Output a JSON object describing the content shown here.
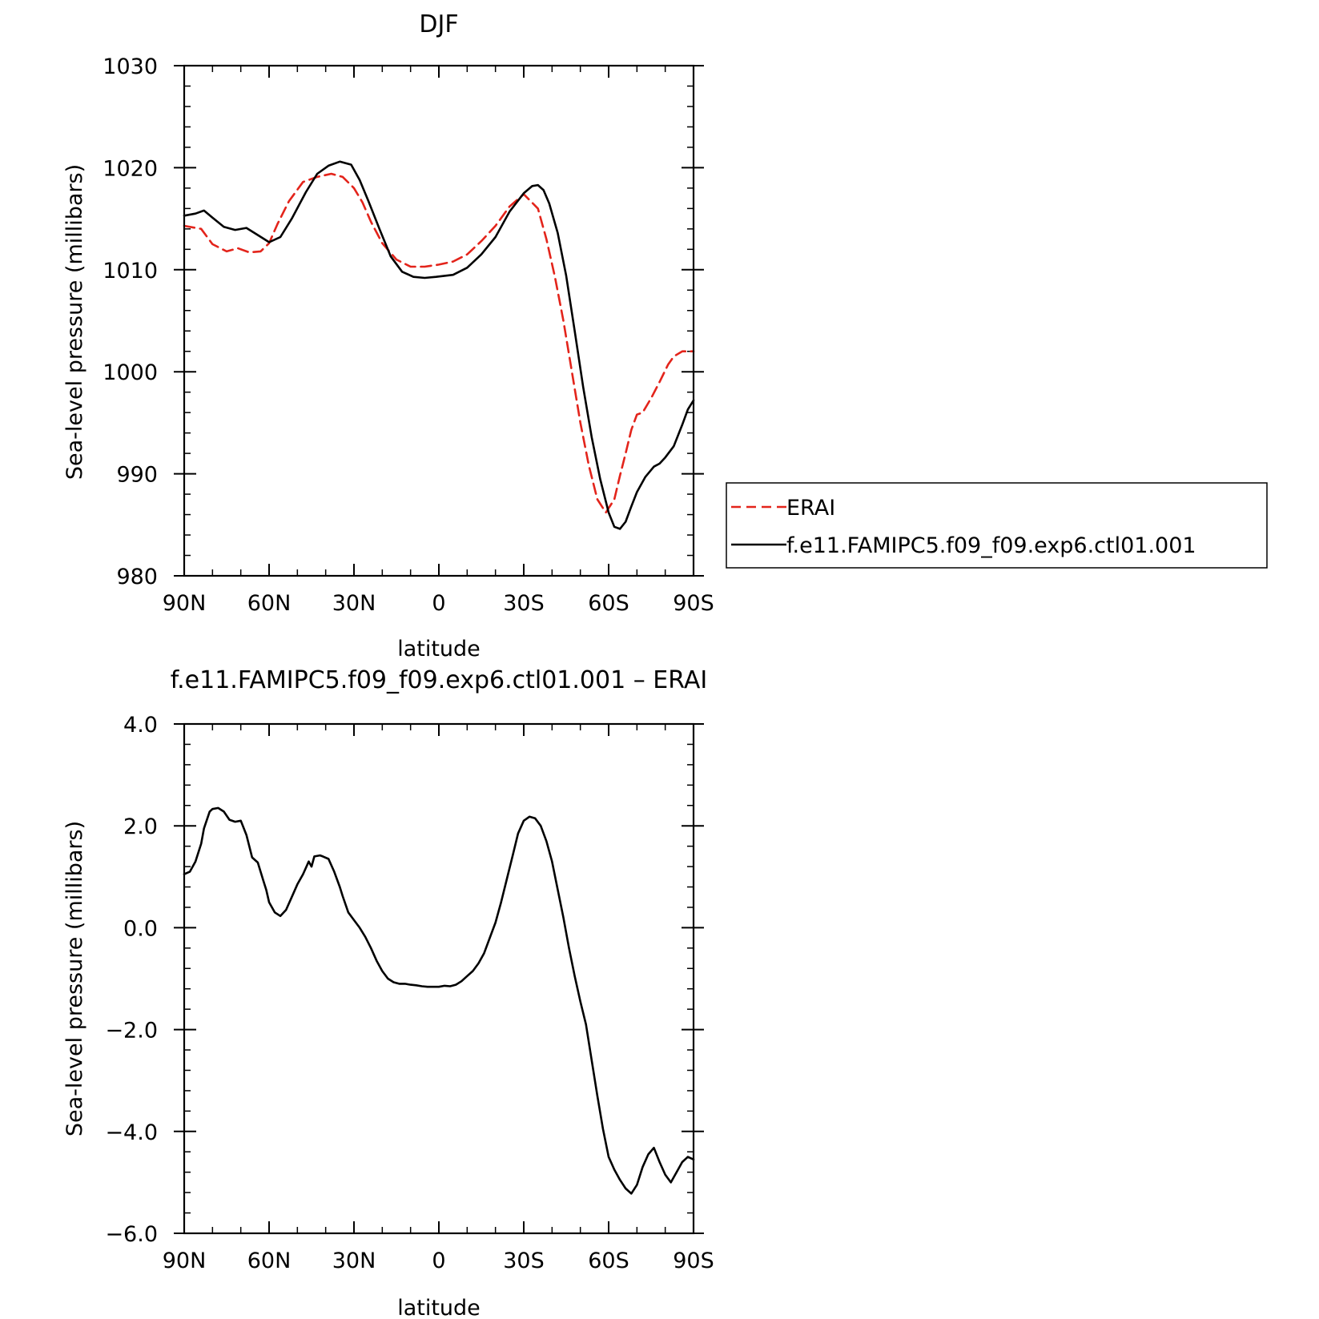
{
  "chart_data": [
    {
      "type": "line",
      "title": "DJF",
      "xlabel": "latitude",
      "ylabel": "Sea-level pressure (millibars)",
      "x_ticks": [
        "90N",
        "60N",
        "30N",
        "0",
        "30S",
        "60S",
        "90S"
      ],
      "y_ticks": [
        "980",
        "990",
        "1000",
        "1010",
        "1020",
        "1030"
      ],
      "xlim": [
        90,
        -90
      ],
      "ylim": [
        980,
        1030
      ],
      "legend_position": "right",
      "series": [
        {
          "name": "ERAI",
          "color": "#e3241b",
          "style": "dashed",
          "x": [
            90,
            84,
            80,
            75,
            71,
            67,
            63,
            60,
            57,
            53,
            48,
            43,
            38,
            34,
            30,
            27,
            24,
            20,
            15,
            10,
            5,
            0,
            -5,
            -10,
            -15,
            -20,
            -25,
            -30,
            -35,
            -38,
            -41,
            -44,
            -47,
            -50,
            -53,
            -56,
            -59,
            -62,
            -64,
            -66,
            -68,
            -70,
            -72,
            -75,
            -78,
            -81,
            -83,
            -86,
            -88,
            -90
          ],
          "y": [
            1014.3,
            1014.0,
            1012.5,
            1011.8,
            1012.1,
            1011.7,
            1011.8,
            1012.6,
            1014.5,
            1016.7,
            1018.6,
            1019.1,
            1019.4,
            1019.1,
            1018.0,
            1016.6,
            1014.7,
            1012.6,
            1011.0,
            1010.3,
            1010.3,
            1010.5,
            1010.8,
            1011.5,
            1012.8,
            1014.3,
            1016.2,
            1017.4,
            1016.0,
            1013.0,
            1009.3,
            1005.0,
            1000.0,
            995.0,
            990.8,
            987.5,
            986.2,
            987.5,
            989.8,
            992.0,
            994.3,
            995.8,
            996.0,
            997.4,
            999.0,
            1000.7,
            1001.5,
            1002.0,
            1002.0,
            1002.0
          ]
        },
        {
          "name": "f.e11.FAMIPC5.f09_f09.exp6.ctl01.001",
          "color": "#000000",
          "style": "solid",
          "x": [
            90,
            86,
            83,
            80,
            76,
            72,
            68,
            64,
            60,
            56,
            52,
            47,
            43,
            39,
            35,
            31,
            28,
            25,
            21,
            17,
            13,
            9,
            5,
            1,
            -5,
            -10,
            -15,
            -20,
            -25,
            -30,
            -33,
            -35,
            -37,
            -39,
            -42,
            -45,
            -48,
            -51,
            -54,
            -57,
            -60,
            -62,
            -64,
            -66,
            -68,
            -70,
            -73,
            -76,
            -78,
            -80,
            -83,
            -86,
            -88,
            -90
          ],
          "y": [
            1015.3,
            1015.5,
            1015.8,
            1015.1,
            1014.2,
            1013.9,
            1014.1,
            1013.4,
            1012.7,
            1013.2,
            1015.0,
            1017.6,
            1019.4,
            1020.2,
            1020.6,
            1020.3,
            1018.8,
            1016.8,
            1014.0,
            1011.3,
            1009.8,
            1009.3,
            1009.2,
            1009.3,
            1009.5,
            1010.2,
            1011.5,
            1013.2,
            1015.7,
            1017.5,
            1018.2,
            1018.3,
            1017.8,
            1016.5,
            1013.6,
            1009.4,
            1004.0,
            998.5,
            993.6,
            989.5,
            986.2,
            984.8,
            984.6,
            985.3,
            986.8,
            988.2,
            989.7,
            990.7,
            991.0,
            991.6,
            992.7,
            994.8,
            996.3,
            997.2
          ]
        }
      ]
    },
    {
      "type": "line",
      "title": "f.e11.FAMIPC5.f09_f09.exp6.ctl01.001  –  ERAI",
      "xlabel": "latitude",
      "ylabel": "Sea-level pressure (millibars)",
      "x_ticks": [
        "90N",
        "60N",
        "30N",
        "0",
        "30S",
        "60S",
        "90S"
      ],
      "y_ticks": [
        "−6.0",
        "−4.0",
        "−2.0",
        "0.0",
        "2.0",
        "4.0"
      ],
      "xlim": [
        90,
        -90
      ],
      "ylim": [
        -6,
        4
      ],
      "series": [
        {
          "color": "#000000",
          "style": "solid",
          "x": [
            90,
            88,
            86,
            84,
            83,
            81,
            80,
            78,
            76,
            74,
            72,
            70,
            68,
            66,
            64,
            62,
            61,
            60,
            58,
            56,
            54,
            52,
            50,
            48,
            46,
            45,
            44,
            42,
            41,
            39,
            37,
            35,
            34,
            32,
            30,
            28,
            26,
            24,
            22,
            20,
            18,
            16,
            14,
            12,
            10,
            8,
            6,
            4,
            2,
            0,
            -2,
            -4,
            -6,
            -8,
            -10,
            -12,
            -14,
            -16,
            -18,
            -20,
            -22,
            -24,
            -26,
            -28,
            -30,
            -32,
            -34,
            -36,
            -38,
            -40,
            -42,
            -44,
            -46,
            -48,
            -50,
            -52,
            -54,
            -56,
            -58,
            -60,
            -62,
            -64,
            -66,
            -68,
            -70,
            -72,
            -74,
            -76,
            -78,
            -80,
            -82,
            -84,
            -86,
            -88,
            -90
          ],
          "y": [
            1.05,
            1.1,
            1.3,
            1.65,
            1.95,
            2.28,
            2.33,
            2.35,
            2.28,
            2.12,
            2.08,
            2.1,
            1.82,
            1.38,
            1.28,
            0.92,
            0.74,
            0.5,
            0.3,
            0.23,
            0.35,
            0.6,
            0.85,
            1.05,
            1.3,
            1.2,
            1.4,
            1.42,
            1.4,
            1.35,
            1.1,
            0.8,
            0.62,
            0.3,
            0.15,
            0.0,
            -0.18,
            -0.4,
            -0.65,
            -0.85,
            -1.0,
            -1.07,
            -1.1,
            -1.1,
            -1.12,
            -1.13,
            -1.15,
            -1.16,
            -1.16,
            -1.16,
            -1.14,
            -1.15,
            -1.12,
            -1.05,
            -0.95,
            -0.85,
            -0.7,
            -0.5,
            -0.2,
            0.1,
            0.5,
            0.95,
            1.4,
            1.85,
            2.1,
            2.18,
            2.15,
            2.0,
            1.7,
            1.3,
            0.75,
            0.2,
            -0.4,
            -0.95,
            -1.45,
            -1.9,
            -2.6,
            -3.3,
            -3.95,
            -4.5,
            -4.75,
            -4.95,
            -5.12,
            -5.22,
            -5.05,
            -4.7,
            -4.45,
            -4.32,
            -4.6,
            -4.85,
            -5.0,
            -4.8,
            -4.6,
            -4.5,
            -4.55
          ]
        }
      ]
    }
  ]
}
